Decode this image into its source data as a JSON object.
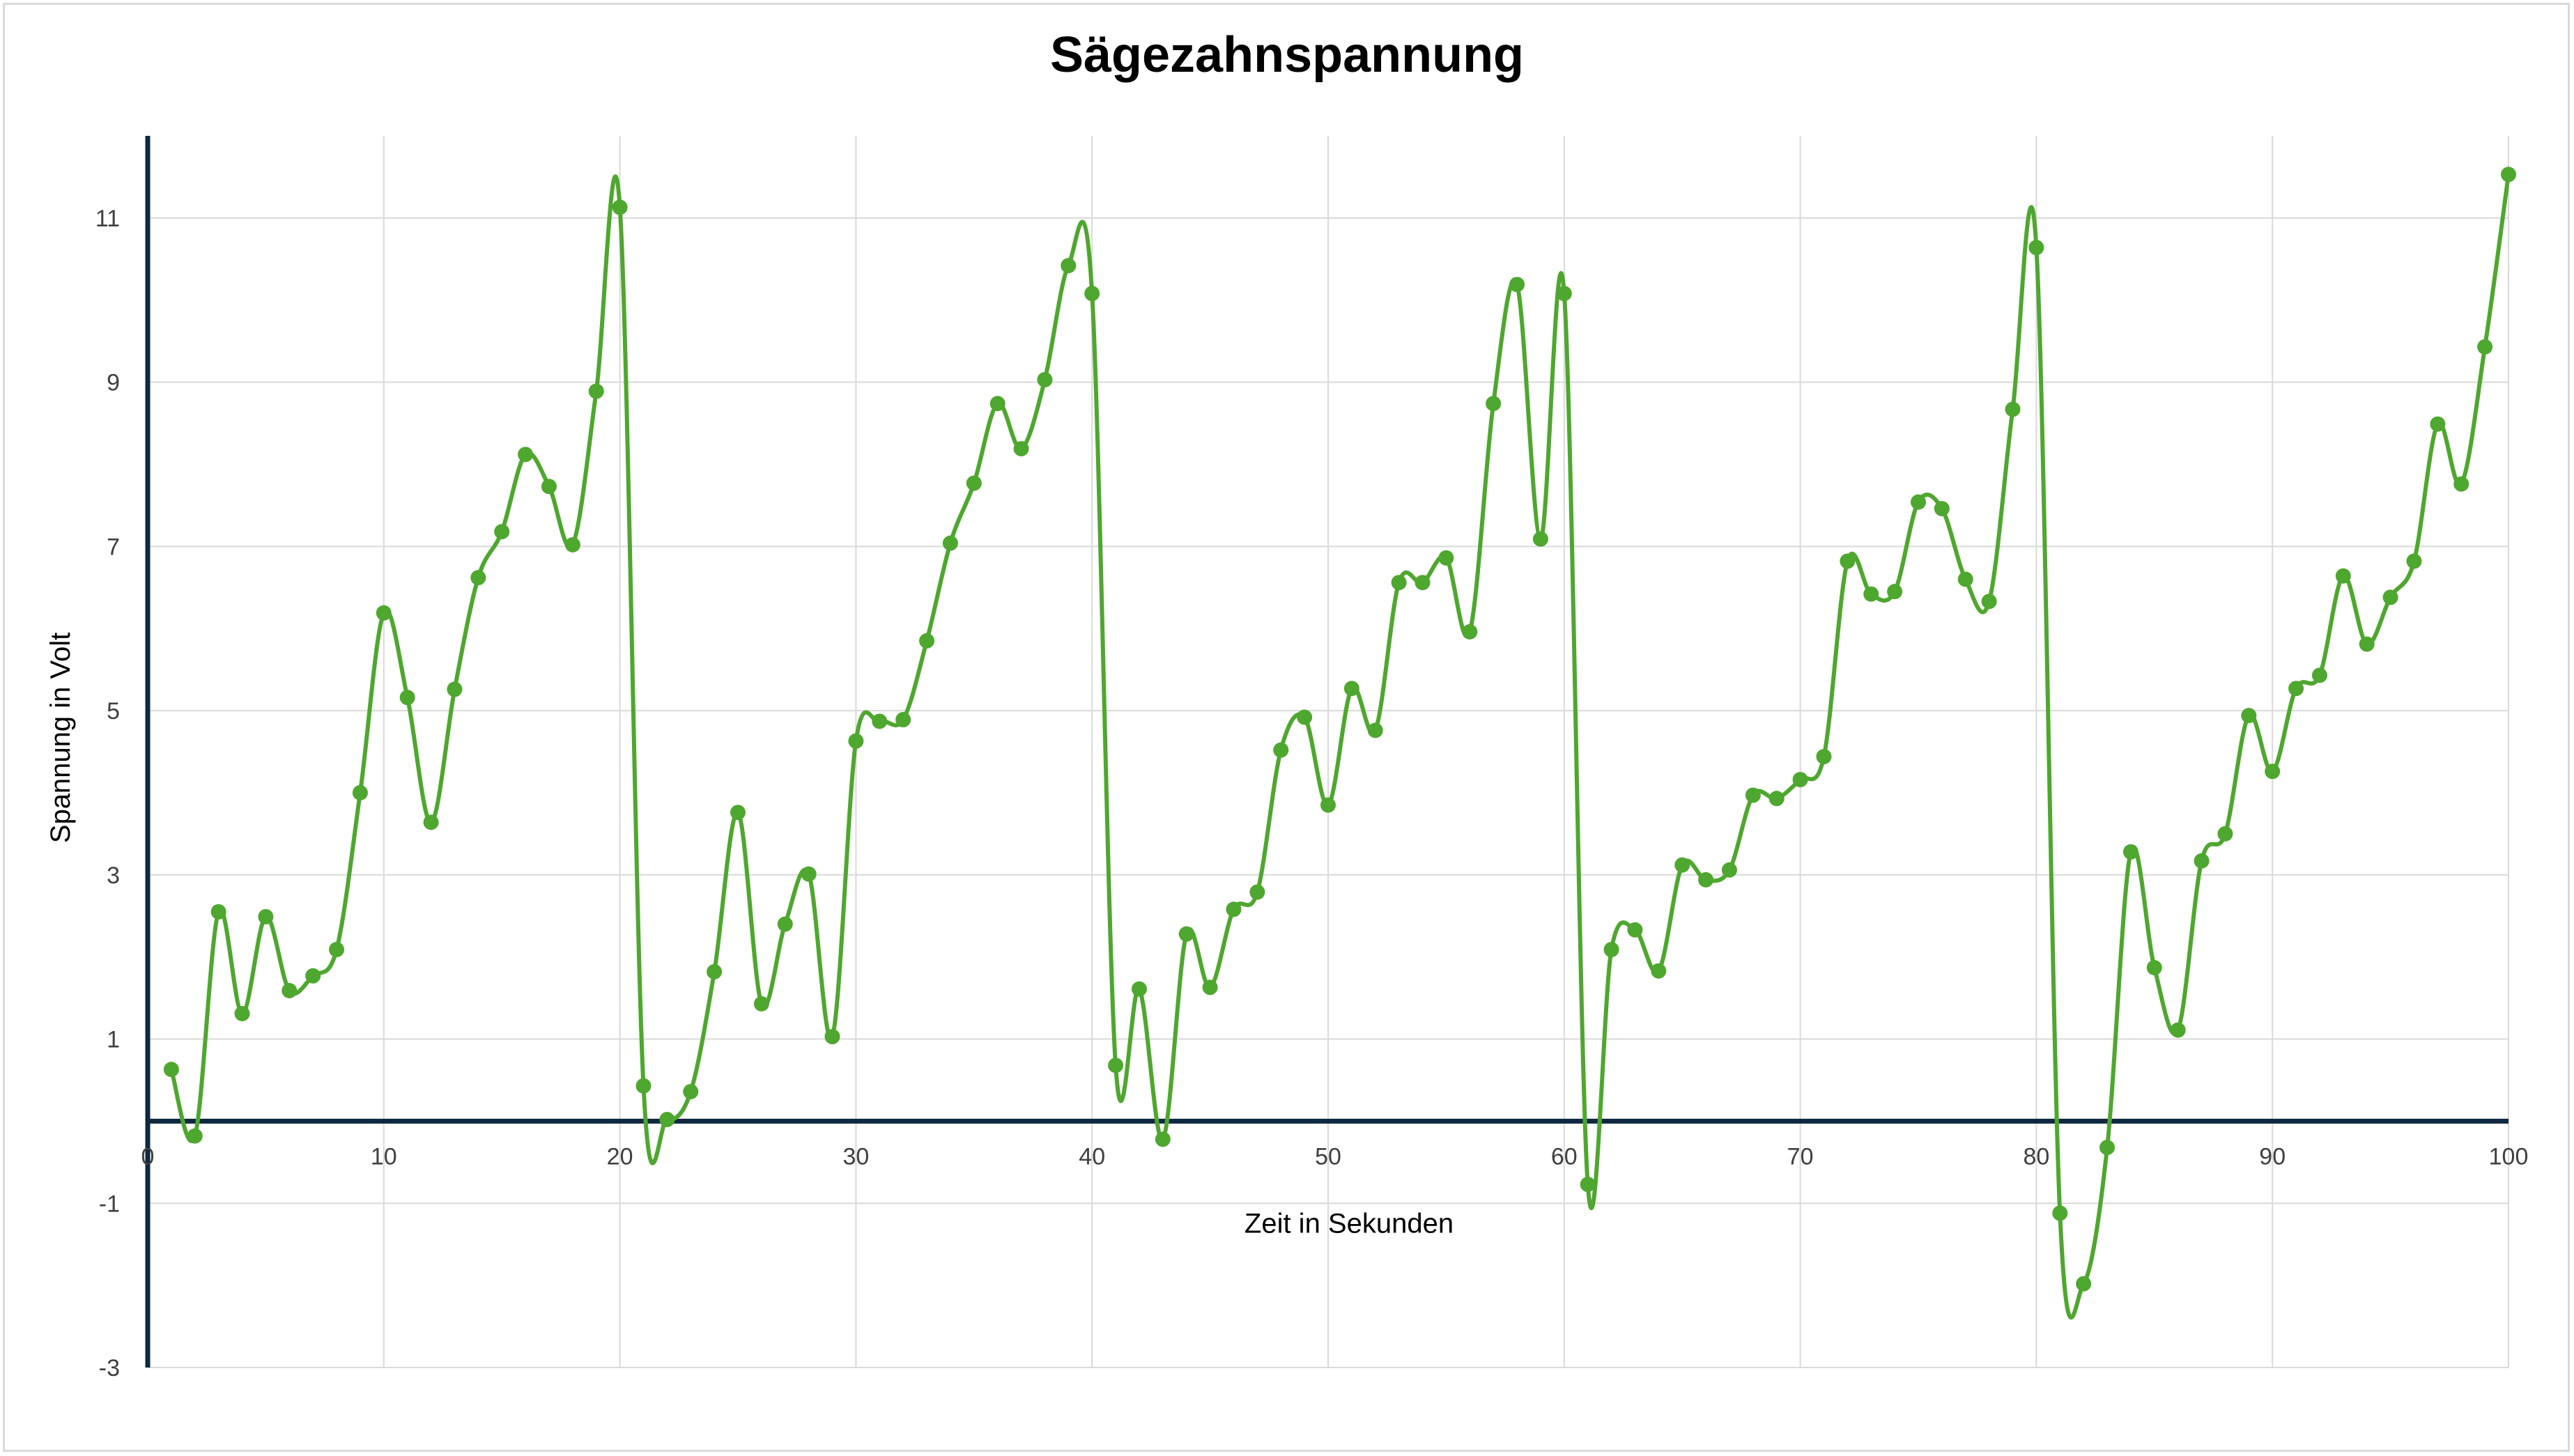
{
  "chart_data": {
    "type": "line",
    "title": "Sägezahnspannung",
    "xlabel": "Zeit in Sekunden",
    "ylabel": "Spannung in Volt",
    "xlim": [
      0,
      100
    ],
    "ylim": [
      -3,
      12
    ],
    "x_ticks": [
      0,
      10,
      20,
      30,
      40,
      50,
      60,
      70,
      80,
      90,
      100
    ],
    "y_ticks": [
      -3,
      -1,
      1,
      3,
      5,
      7,
      9,
      11
    ],
    "grid": true,
    "legend": "none",
    "smooth": true,
    "colors": {
      "series": "#4ea72e",
      "axis": "#0e2841",
      "grid": "#d9d9d9"
    },
    "series": [
      {
        "x": [
          1,
          2,
          3,
          4,
          5,
          6,
          7,
          8,
          9,
          10,
          11,
          12,
          13,
          14,
          15,
          16,
          17,
          18,
          19,
          20,
          21,
          22,
          23,
          24,
          25,
          26,
          27,
          28,
          29,
          30,
          31,
          32,
          33,
          34,
          35,
          36,
          37,
          38,
          39,
          40,
          41,
          42,
          43,
          44,
          45,
          46,
          47,
          48,
          49,
          50,
          51,
          52,
          53,
          54,
          55,
          56,
          57,
          58,
          59,
          60,
          61,
          62,
          63,
          64,
          65,
          66,
          67,
          68,
          69,
          70,
          71,
          72,
          73,
          74,
          75,
          76,
          77,
          78,
          79,
          80,
          81,
          82,
          83,
          84,
          85,
          86,
          87,
          88,
          89,
          90,
          91,
          92,
          93,
          94,
          95,
          96,
          97,
          98,
          99,
          100
        ],
        "values": [
          0.63,
          -0.18,
          2.55,
          1.31,
          2.49,
          1.59,
          1.77,
          2.09,
          4.0,
          6.19,
          5.16,
          3.64,
          5.26,
          6.62,
          7.18,
          8.12,
          7.73,
          7.02,
          8.89,
          11.13,
          0.43,
          0.02,
          0.36,
          1.82,
          3.76,
          1.43,
          2.4,
          3.01,
          1.03,
          4.63,
          4.87,
          4.89,
          5.85,
          7.04,
          7.77,
          8.74,
          8.19,
          9.03,
          10.42,
          10.08,
          0.68,
          1.61,
          -0.22,
          2.28,
          1.63,
          2.58,
          2.79,
          4.52,
          4.92,
          3.85,
          5.27,
          4.76,
          6.56,
          6.56,
          6.86,
          5.96,
          8.74,
          10.19,
          7.09,
          10.08,
          -0.77,
          2.09,
          2.33,
          1.83,
          3.12,
          2.94,
          3.06,
          3.97,
          3.93,
          4.16,
          4.44,
          6.82,
          6.42,
          6.45,
          7.54,
          7.46,
          6.6,
          6.33,
          8.67,
          10.64,
          -1.12,
          -1.98,
          -0.32,
          3.28,
          1.87,
          1.11,
          3.17,
          3.5,
          4.94,
          4.26,
          5.27,
          5.43,
          6.64,
          5.81,
          6.38,
          6.82,
          8.49,
          7.76,
          9.43,
          11.53
        ]
      }
    ]
  }
}
